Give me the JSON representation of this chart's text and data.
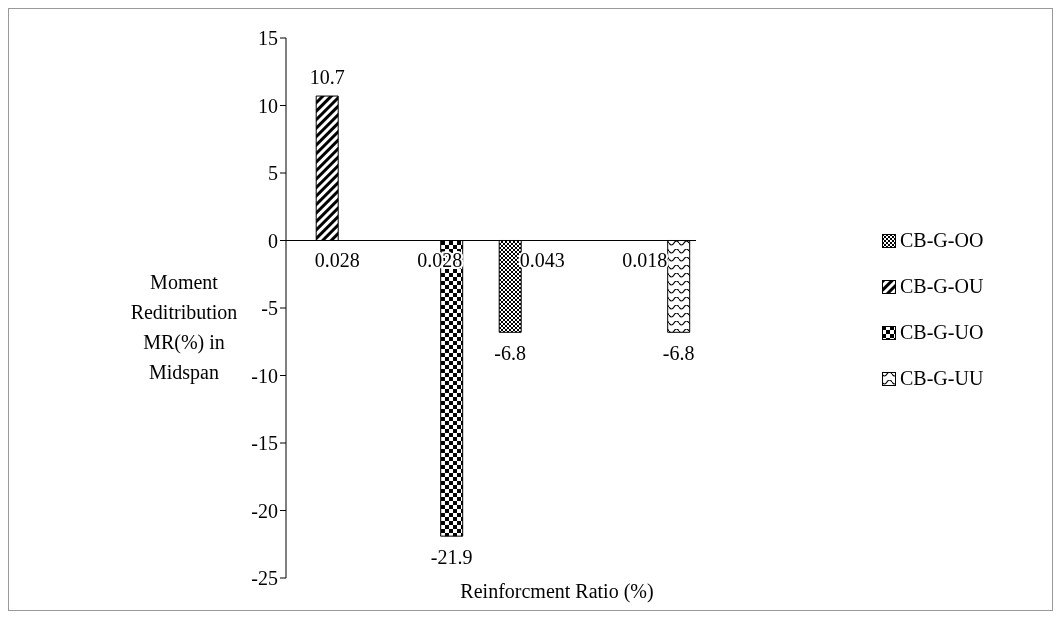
{
  "chart_data": {
    "type": "bar",
    "xlabel": "Reinforcment Ratio (%)",
    "ylabel": "Moment Reditribution MR(%) in Midspan",
    "categories": [
      "0.028",
      "0.028",
      "0.043",
      "0.018"
    ],
    "series": [
      {
        "name": "CB-G-OO",
        "color": "#000000",
        "values": [
          null,
          null,
          -6.8,
          null
        ]
      },
      {
        "name": "CB-G-OU",
        "color": "#000000",
        "values": [
          10.7,
          null,
          null,
          null
        ]
      },
      {
        "name": "CB-G-UO",
        "color": "#000000",
        "values": [
          null,
          -21.9,
          null,
          null
        ]
      },
      {
        "name": "CB-G-UU",
        "color": "#000000",
        "values": [
          null,
          null,
          null,
          -6.8
        ]
      }
    ],
    "ylim": [
      -25,
      15
    ],
    "yticks": [
      -25,
      -20,
      -15,
      -10,
      -5,
      0,
      5,
      10,
      15
    ],
    "legend": "right",
    "data_labels": true
  }
}
